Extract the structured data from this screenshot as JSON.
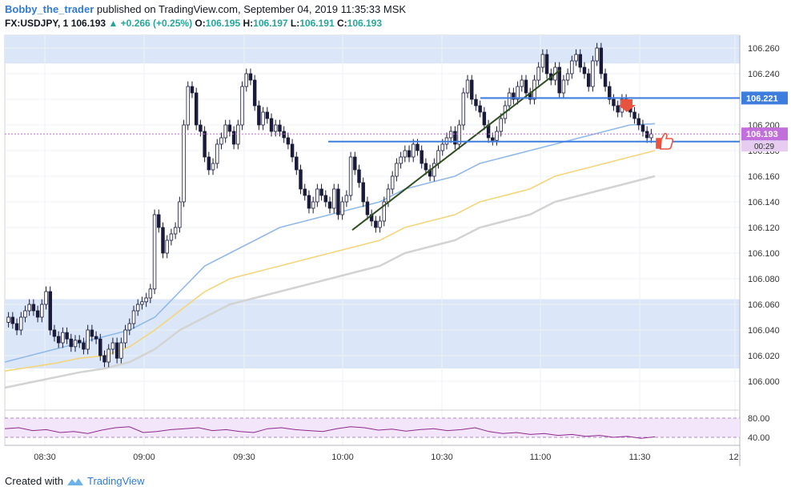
{
  "header": {
    "author": "Bobby_the_trader",
    "published": "published on TradingView.com, September 04, 2019 11:35:33 MSK",
    "symbol": "FX:USDJPY, 1",
    "last": "106.193",
    "change": "+0.266 (+0.25%)",
    "o_label": "O:",
    "o_value": "106.195",
    "h_label": "H:",
    "h_value": "106.197",
    "l_label": "L:",
    "l_value": "106.191",
    "c_label": "C:",
    "c_value": "106.193"
  },
  "footer": {
    "created_with": "Created with",
    "brand": "TradingView"
  },
  "colors": {
    "up": "#26a69a",
    "down": "#ef5350",
    "candle": "#1a1a3a",
    "ma_fast": "#91b9e8",
    "ma_mid": "#f3d57a",
    "ma_slow": "#d3d3d3",
    "zone": "#dbe7f8",
    "level": "#3d7dde",
    "trend": "#2f4f1f",
    "rsi": "#8e2a8e",
    "rsi_bg": "#f3e6fb",
    "price_tag": "#c36fdb",
    "level_tag": "#3d7dde"
  },
  "chart_data": {
    "type": "candlestick",
    "ylim": [
      105.98,
      106.27
    ],
    "y_ticks": [
      "106.260",
      "106.240",
      "106.220",
      "106.200",
      "106.180",
      "106.160",
      "106.140",
      "106.120",
      "106.100",
      "106.080",
      "106.060",
      "106.040",
      "106.020",
      "106.000"
    ],
    "x_ticks": [
      "08:30",
      "09:00",
      "09:30",
      "10:00",
      "10:30",
      "11:00",
      "11:30",
      "12:"
    ],
    "zones": [
      {
        "from": 106.248,
        "to": 106.27
      },
      {
        "from": 106.01,
        "to": 106.064
      }
    ],
    "levels": [
      {
        "value": 106.221,
        "label": "106.221"
      },
      {
        "value": 106.187,
        "label": "106.187"
      }
    ],
    "last_price": {
      "value": 106.193,
      "label": "106.193",
      "countdown": "00:29"
    },
    "series": [
      {
        "name": "close",
        "values": [
          106.05,
          106.045,
          106.04,
          106.05,
          106.055,
          106.06,
          106.055,
          106.05,
          106.06,
          106.07,
          106.04,
          106.035,
          106.03,
          106.038,
          106.033,
          106.027,
          106.032,
          106.03,
          106.025,
          106.04,
          106.035,
          106.033,
          106.02,
          106.015,
          106.025,
          106.03,
          106.018,
          106.03,
          106.04,
          106.045,
          106.055,
          106.06,
          106.062,
          106.065,
          106.072,
          106.13,
          106.12,
          106.1,
          106.11,
          106.115,
          106.12,
          106.14,
          106.2,
          106.23,
          106.225,
          106.2,
          106.195,
          106.175,
          106.165,
          106.17,
          106.185,
          106.19,
          106.2,
          106.195,
          106.185,
          106.2,
          106.23,
          106.24,
          106.235,
          106.215,
          106.2,
          106.21,
          106.205,
          106.195,
          106.2,
          106.195,
          106.19,
          106.185,
          106.175,
          106.165,
          106.15,
          106.145,
          106.135,
          106.14,
          106.15,
          106.145,
          106.14,
          106.135,
          106.15,
          106.13,
          106.14,
          106.145,
          106.175,
          106.165,
          106.155,
          106.14,
          106.13,
          106.125,
          106.12,
          106.125,
          106.14,
          106.15,
          106.16,
          106.17,
          106.175,
          106.18,
          106.175,
          106.185,
          106.18,
          106.17,
          106.165,
          106.16,
          106.17,
          106.18,
          106.185,
          106.19,
          106.195,
          106.185,
          106.2,
          106.225,
          106.235,
          106.22,
          106.215,
          106.21,
          106.2,
          106.19,
          106.188,
          106.195,
          106.205,
          106.215,
          106.225,
          106.22,
          106.23,
          106.235,
          106.225,
          106.22,
          106.235,
          106.245,
          106.255,
          106.24,
          106.235,
          106.245,
          106.225,
          106.235,
          106.24,
          106.25,
          106.255,
          106.245,
          106.24,
          106.23,
          106.25,
          106.26,
          106.24,
          106.23,
          106.22,
          106.215,
          106.21,
          106.22,
          106.215,
          106.21,
          106.205,
          106.2,
          106.195,
          106.19,
          106.193
        ]
      },
      {
        "name": "ma_fast",
        "values": [
          106.015,
          106.02,
          106.025,
          106.03,
          106.035,
          106.04,
          106.05,
          106.07,
          106.09,
          106.1,
          106.11,
          106.12,
          106.125,
          106.13,
          106.135,
          106.14,
          106.15,
          106.155,
          106.16,
          106.17,
          106.175,
          106.18,
          106.185,
          106.19,
          106.195,
          106.2,
          106.201
        ]
      },
      {
        "name": "ma_mid",
        "values": [
          106.008,
          106.011,
          106.014,
          106.018,
          106.02,
          106.027,
          106.04,
          106.055,
          106.07,
          106.08,
          106.085,
          106.09,
          106.095,
          106.1,
          106.105,
          106.11,
          106.12,
          106.125,
          106.13,
          106.14,
          106.145,
          106.15,
          106.16,
          106.165,
          106.17,
          106.175,
          106.18
        ]
      },
      {
        "name": "ma_slow",
        "values": [
          105.995,
          105.999,
          106.003,
          106.007,
          106.01,
          106.015,
          106.025,
          106.04,
          106.05,
          106.06,
          106.065,
          106.07,
          106.075,
          106.08,
          106.085,
          106.09,
          106.1,
          106.105,
          106.11,
          106.12,
          106.125,
          106.13,
          106.14,
          106.145,
          106.15,
          106.155,
          106.16
        ]
      }
    ],
    "rsi": {
      "ticks": [
        "80.00",
        "40.00"
      ],
      "ylim": [
        30,
        90
      ],
      "values": [
        58,
        60,
        54,
        56,
        50,
        52,
        48,
        55,
        60,
        62,
        50,
        52,
        56,
        58,
        60,
        54,
        56,
        52,
        50,
        58,
        60,
        56,
        54,
        52,
        58,
        62,
        60,
        55,
        57,
        53,
        56,
        58,
        54,
        56,
        60,
        52,
        48,
        50,
        46,
        48,
        44,
        46,
        42,
        44,
        40,
        42,
        38,
        41
      ]
    }
  }
}
